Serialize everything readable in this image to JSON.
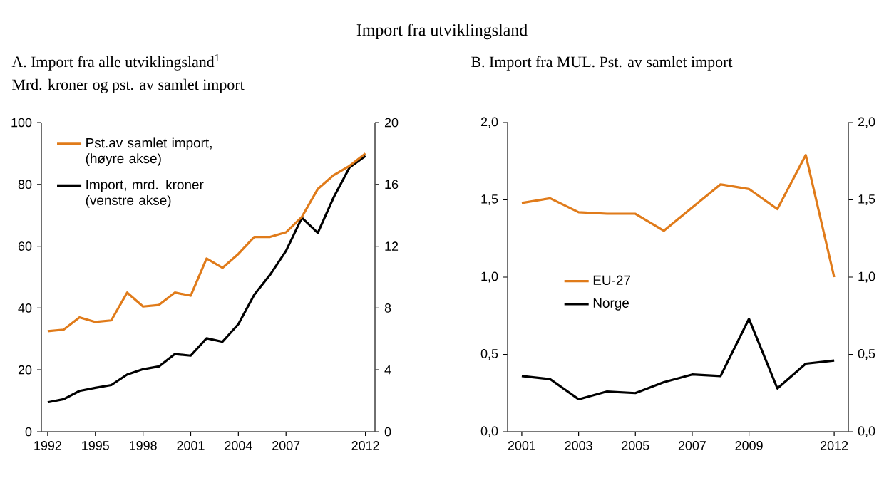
{
  "chart_data": [
    {
      "type": "line",
      "title": "A. Import fra alle utviklingsland$^{1}$",
      "subtitle": "Mrd. kroner og pst. av samlet import",
      "annotations": [
        "Import fra utviklingsland"
      ],
      "x": [
        1992,
        1993,
        1994,
        1995,
        1996,
        1997,
        1998,
        1999,
        2000,
        2001,
        2002,
        2003,
        2004,
        2005,
        2006,
        2007,
        2008,
        2009,
        2010,
        2011,
        2012
      ],
      "xlim": [
        1991.6,
        2012.6
      ],
      "xticks": [
        1992,
        1995,
        1998,
        2001,
        2004,
        2007,
        2012
      ],
      "ylim": [
        0,
        100
      ],
      "yticks": [
        0,
        20,
        40,
        60,
        80,
        100
      ],
      "y2lim": [
        0,
        20
      ],
      "y2ticks": [
        0,
        4,
        8,
        12,
        16,
        20
      ],
      "legend": "top left",
      "series": [
        {
          "name": "Pst.av samlet import, (høyre akse)",
          "color": "#e07b1a",
          "axis": "y2",
          "values": [
            6.5,
            6.6,
            7.4,
            7.1,
            7.2,
            9.0,
            8.1,
            8.2,
            9.0,
            8.8,
            11.2,
            10.6,
            11.5,
            12.6,
            12.6,
            12.9,
            13.9,
            15.7,
            16.6,
            17.2,
            18.0
          ]
        },
        {
          "name": "Import, mrd. kroner (venstre akse)",
          "color": "#000000",
          "axis": "y",
          "values": [
            9.5,
            10.5,
            13.2,
            14.2,
            15.1,
            18.5,
            20.2,
            21.1,
            25.1,
            24.6,
            30.2,
            29.1,
            34.8,
            44.3,
            50.8,
            58.5,
            69.2,
            64.3,
            75.8,
            85.5,
            89.2
          ]
        }
      ]
    },
    {
      "type": "line",
      "title": "B. Import fra MUL. Pst. av samlet import",
      "x": [
        2001,
        2002,
        2003,
        2004,
        2005,
        2006,
        2007,
        2008,
        2009,
        2010,
        2011,
        2012
      ],
      "xlim": [
        2000.5,
        2012.5
      ],
      "xticks": [
        2001,
        2003,
        2005,
        2007,
        2009,
        2012
      ],
      "ylim": [
        0,
        2
      ],
      "yticks": [
        {
          "value": 0,
          "label": "0,0"
        },
        {
          "value": 0.5,
          "label": "0,5"
        },
        {
          "value": 1,
          "label": "1,0"
        },
        {
          "value": 1.5,
          "label": "1,5"
        },
        {
          "value": 2,
          "label": "2,0"
        }
      ],
      "y2lim": [
        0,
        2
      ],
      "y2ticks": [
        {
          "value": 0,
          "label": "0,0"
        },
        {
          "value": 0.5,
          "label": "0,5"
        },
        {
          "value": 1,
          "label": "1,0"
        },
        {
          "value": 1.5,
          "label": "1,5"
        },
        {
          "value": 2,
          "label": "2,0"
        }
      ],
      "legend": "left",
      "series": [
        {
          "name": "EU-27",
          "color": "#e07b1a",
          "axis": "y",
          "values": [
            1.48,
            1.51,
            1.42,
            1.41,
            1.41,
            1.3,
            1.45,
            1.6,
            1.57,
            1.44,
            1.79,
            1.0
          ]
        },
        {
          "name": "Norge",
          "color": "#000000",
          "axis": "y",
          "values": [
            0.36,
            0.34,
            0.21,
            0.26,
            0.25,
            0.32,
            0.37,
            0.36,
            0.73,
            0.28,
            0.44,
            0.46
          ]
        }
      ]
    }
  ]
}
